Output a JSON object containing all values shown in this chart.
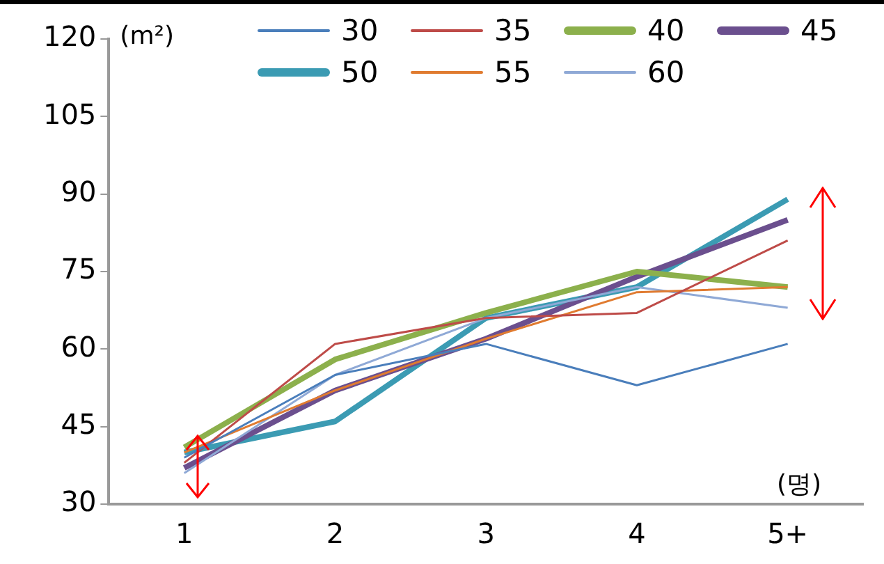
{
  "chart_data": {
    "type": "line",
    "ylabel": "(m²)",
    "xlabel": "(명)",
    "categories": [
      "1",
      "2",
      "3",
      "4",
      "5+"
    ],
    "series": [
      {
        "name": "30",
        "color": "#4a7ebb",
        "values": [
          39,
          55,
          61,
          53,
          61
        ]
      },
      {
        "name": "35",
        "color": "#be4b48",
        "values": [
          38,
          61,
          66,
          67,
          81
        ]
      },
      {
        "name": "40",
        "color": "#8cb04c",
        "values": [
          41,
          58,
          67,
          75,
          72
        ]
      },
      {
        "name": "45",
        "color": "#6b4f8e",
        "values": [
          37,
          52,
          62,
          74,
          85
        ]
      },
      {
        "name": "50",
        "color": "#3b9bb3",
        "values": [
          40,
          46,
          66,
          72,
          89
        ]
      },
      {
        "name": "55",
        "color": "#e07b30",
        "values": [
          40,
          52,
          62,
          71,
          72
        ]
      },
      {
        "name": "60",
        "color": "#8fa9d6",
        "values": [
          36,
          55,
          66,
          72,
          68
        ]
      }
    ],
    "ylim": [
      30,
      120
    ],
    "yticks": [
      30,
      45,
      60,
      75,
      90,
      105,
      120
    ],
    "grid": false,
    "legend": "top",
    "marker": "none",
    "line_style": "solid"
  }
}
